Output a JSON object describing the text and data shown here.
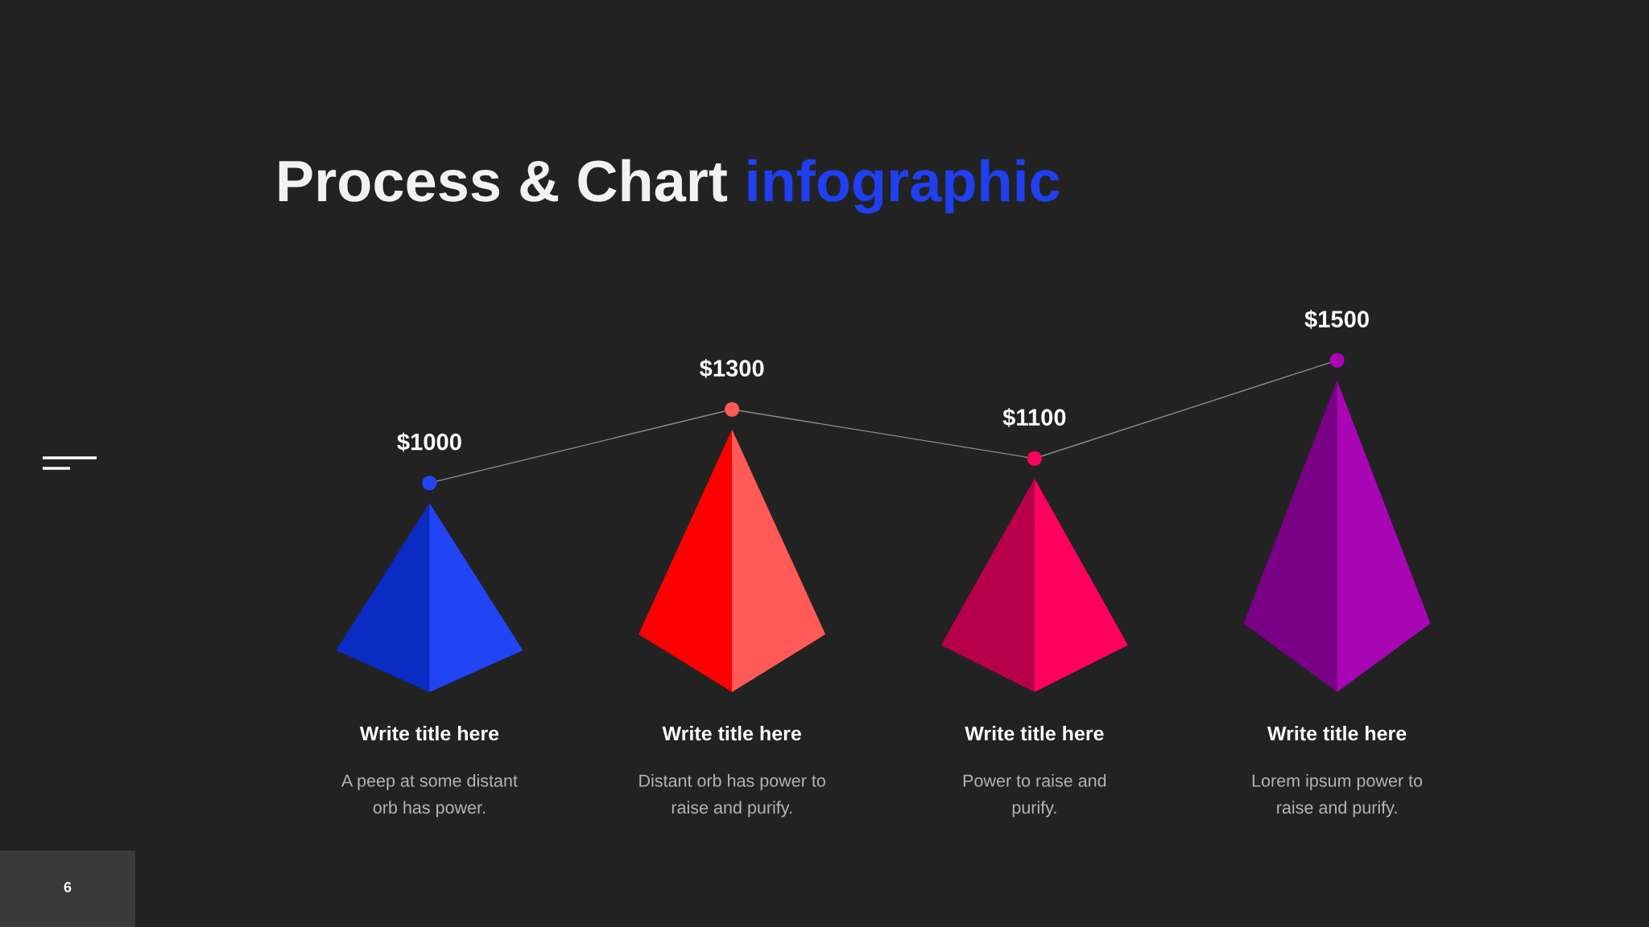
{
  "chart_data": {
    "type": "line",
    "title": "Process & Chart infographic",
    "categories": [
      "Write title here",
      "Write title here",
      "Write title here",
      "Write title here"
    ],
    "values": [
      1000,
      1300,
      1100,
      1500
    ],
    "value_labels": [
      "$1000",
      "$1300",
      "$1100",
      "$1500"
    ],
    "color": "#8c8c8c",
    "colors": [
      "#2145f5",
      "#ff5a55",
      "#ff005e",
      "#a805b5"
    ],
    "marker": "circle",
    "tick_labels": "x",
    "annotations": [
      "A peep at some distant\norb has power.",
      "Distant orb has power to\nraise and purify.",
      "Power to raise and\npurify.",
      "Lorem ipsum power to\nraise and purify.",
      "6"
    ]
  }
}
